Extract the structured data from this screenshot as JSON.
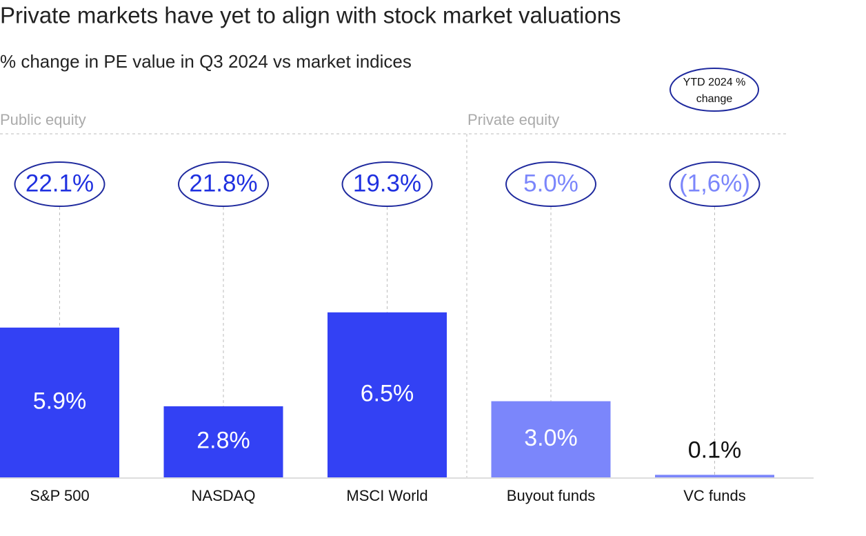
{
  "chart_data": {
    "type": "bar",
    "title": "Private markets have yet to align with stock market valuations",
    "subtitle": "% change in PE value in Q3 2024 vs market indices",
    "groups": [
      "Public equity",
      "Private equity"
    ],
    "categories": [
      "S&P 500",
      "NASDAQ",
      "MSCI World",
      "Buyout funds",
      "VC funds"
    ],
    "values": [
      5.9,
      2.8,
      6.5,
      3.0,
      0.1
    ],
    "value_labels": [
      "5.9%",
      "2.8%",
      "6.5%",
      "3.0%",
      "0.1%"
    ],
    "colors": [
      "#3341f4",
      "#3341f4",
      "#3341f4",
      "#7b86fb",
      "#7b86fb"
    ],
    "ytd_change": {
      "name": "YTD 2024 % change",
      "values": [
        22.1,
        21.8,
        19.3,
        5.0,
        -1.6
      ],
      "value_labels": [
        "22.1%",
        "21.8%",
        "19.3%",
        "5.0%",
        "(1,6%)"
      ]
    }
  }
}
